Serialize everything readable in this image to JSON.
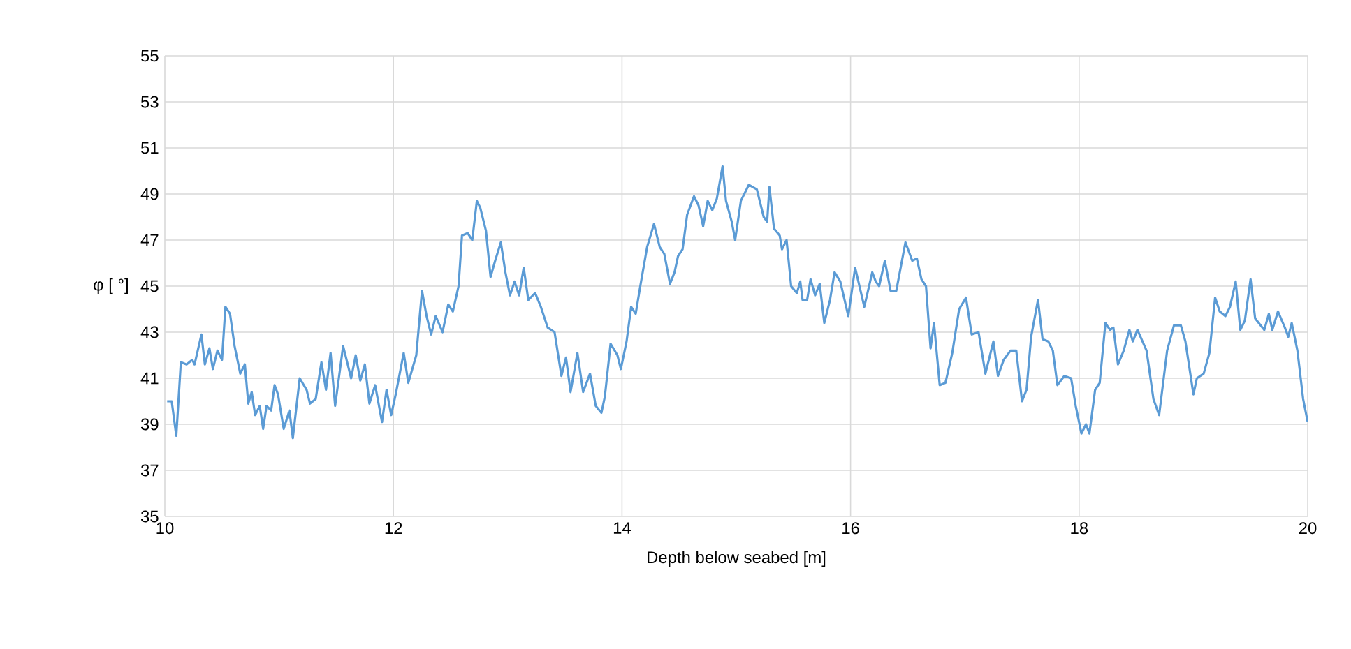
{
  "chart_data": {
    "type": "line",
    "xlabel": "Depth below seabed [m]",
    "ylabel": "φ [ °]",
    "xlim": [
      10,
      20
    ],
    "xticks": [
      10,
      12,
      14,
      16,
      18,
      20
    ],
    "ylim": [
      35,
      55
    ],
    "yticks": [
      35,
      37,
      39,
      41,
      43,
      45,
      47,
      49,
      51,
      53,
      55
    ],
    "grid": true,
    "marker": "none",
    "line_style": "solid",
    "series": [
      {
        "color": "#5b9bd5",
        "x": [
          10.02,
          10.06,
          10.1,
          10.14,
          10.19,
          10.24,
          10.26,
          10.32,
          10.35,
          10.39,
          10.42,
          10.46,
          10.5,
          10.53,
          10.57,
          10.61,
          10.66,
          10.7,
          10.73,
          10.76,
          10.79,
          10.83,
          10.86,
          10.89,
          10.93,
          10.96,
          10.99,
          11.04,
          11.09,
          11.12,
          11.18,
          11.24,
          11.27,
          11.32,
          11.37,
          11.41,
          11.45,
          11.49,
          11.56,
          11.63,
          11.67,
          11.71,
          11.75,
          11.79,
          11.84,
          11.9,
          11.94,
          11.98,
          12.02,
          12.09,
          12.13,
          12.2,
          12.25,
          12.29,
          12.33,
          12.37,
          12.43,
          12.48,
          12.52,
          12.57,
          12.6,
          12.65,
          12.69,
          12.73,
          12.76,
          12.81,
          12.85,
          12.89,
          12.94,
          12.98,
          13.02,
          13.06,
          13.1,
          13.14,
          13.18,
          13.24,
          13.29,
          13.35,
          13.41,
          13.47,
          13.51,
          13.55,
          13.61,
          13.66,
          13.72,
          13.77,
          13.82,
          13.85,
          13.9,
          13.96,
          13.99,
          14.04,
          14.08,
          14.12,
          14.16,
          14.22,
          14.28,
          14.33,
          14.37,
          14.42,
          14.46,
          14.49,
          14.53,
          14.57,
          14.63,
          14.67,
          14.71,
          14.75,
          14.79,
          14.83,
          14.88,
          14.91,
          14.96,
          14.99,
          15.04,
          15.11,
          15.18,
          15.24,
          15.27,
          15.29,
          15.33,
          15.38,
          15.4,
          15.44,
          15.48,
          15.53,
          15.56,
          15.58,
          15.62,
          15.65,
          15.69,
          15.73,
          15.77,
          15.82,
          15.86,
          15.91,
          15.98,
          16.04,
          16.12,
          16.19,
          16.22,
          16.25,
          16.3,
          16.35,
          16.4,
          16.48,
          16.54,
          16.58,
          16.62,
          16.66,
          16.7,
          16.73,
          16.78,
          16.83,
          16.89,
          16.95,
          17.01,
          17.06,
          17.12,
          17.18,
          17.25,
          17.29,
          17.34,
          17.4,
          17.45,
          17.5,
          17.54,
          17.58,
          17.64,
          17.68,
          17.73,
          17.77,
          17.81,
          17.87,
          17.93,
          17.97,
          18.02,
          18.06,
          18.09,
          18.14,
          18.18,
          18.23,
          18.27,
          18.3,
          18.34,
          18.39,
          18.44,
          18.47,
          18.51,
          18.59,
          18.65,
          18.7,
          18.77,
          18.83,
          18.89,
          18.93,
          19.0,
          19.03,
          19.09,
          19.14,
          19.19,
          19.23,
          19.28,
          19.32,
          19.37,
          19.41,
          19.45,
          19.5,
          19.54,
          19.62,
          19.66,
          19.69,
          19.74,
          19.8,
          19.83,
          19.86,
          19.91,
          19.96,
          20.0
        ],
        "values": [
          40.0,
          40.0,
          38.5,
          41.7,
          41.6,
          41.8,
          41.6,
          42.9,
          41.6,
          42.3,
          41.4,
          42.2,
          41.8,
          44.1,
          43.8,
          42.4,
          41.2,
          41.6,
          39.9,
          40.4,
          39.4,
          39.8,
          38.8,
          39.8,
          39.6,
          40.7,
          40.3,
          38.8,
          39.6,
          38.4,
          41.0,
          40.5,
          39.9,
          40.1,
          41.7,
          40.5,
          42.1,
          39.8,
          42.4,
          41.0,
          42.0,
          40.9,
          41.6,
          39.9,
          40.7,
          39.1,
          40.5,
          39.4,
          40.3,
          42.1,
          40.8,
          42.0,
          44.8,
          43.7,
          42.9,
          43.7,
          43.0,
          44.2,
          43.9,
          45.0,
          47.2,
          47.3,
          47.0,
          48.7,
          48.4,
          47.4,
          45.4,
          46.1,
          46.9,
          45.6,
          44.6,
          45.2,
          44.6,
          45.8,
          44.4,
          44.7,
          44.1,
          43.2,
          43.0,
          41.1,
          41.9,
          40.4,
          42.1,
          40.4,
          41.2,
          39.8,
          39.5,
          40.2,
          42.5,
          42.0,
          41.4,
          42.6,
          44.1,
          43.8,
          45.0,
          46.7,
          47.7,
          46.7,
          46.4,
          45.1,
          45.6,
          46.3,
          46.6,
          48.1,
          48.9,
          48.5,
          47.6,
          48.7,
          48.3,
          48.8,
          50.2,
          48.7,
          47.8,
          47.0,
          48.7,
          49.4,
          49.2,
          48.0,
          47.8,
          49.3,
          47.5,
          47.2,
          46.6,
          47.0,
          45.0,
          44.7,
          45.2,
          44.4,
          44.4,
          45.3,
          44.6,
          45.1,
          43.4,
          44.4,
          45.6,
          45.2,
          43.7,
          45.8,
          44.1,
          45.6,
          45.2,
          45.0,
          46.1,
          44.8,
          44.8,
          46.9,
          46.1,
          46.2,
          45.3,
          45.0,
          42.3,
          43.4,
          40.7,
          40.8,
          42.1,
          44.0,
          44.5,
          42.9,
          43.0,
          41.2,
          42.6,
          41.1,
          41.8,
          42.2,
          42.2,
          40.0,
          40.5,
          42.8,
          44.4,
          42.7,
          42.6,
          42.2,
          40.7,
          41.1,
          41.0,
          39.8,
          38.6,
          39.0,
          38.6,
          40.5,
          40.8,
          43.4,
          43.1,
          43.2,
          41.6,
          42.2,
          43.1,
          42.6,
          43.1,
          42.2,
          40.1,
          39.4,
          42.2,
          43.3,
          43.3,
          42.6,
          40.3,
          41.0,
          41.2,
          42.1,
          44.5,
          43.9,
          43.7,
          44.1,
          45.2,
          43.1,
          43.5,
          45.3,
          43.6,
          43.1,
          43.8,
          43.1,
          43.9,
          43.2,
          42.8,
          43.4,
          42.2,
          40.1,
          39.1
        ]
      }
    ]
  }
}
